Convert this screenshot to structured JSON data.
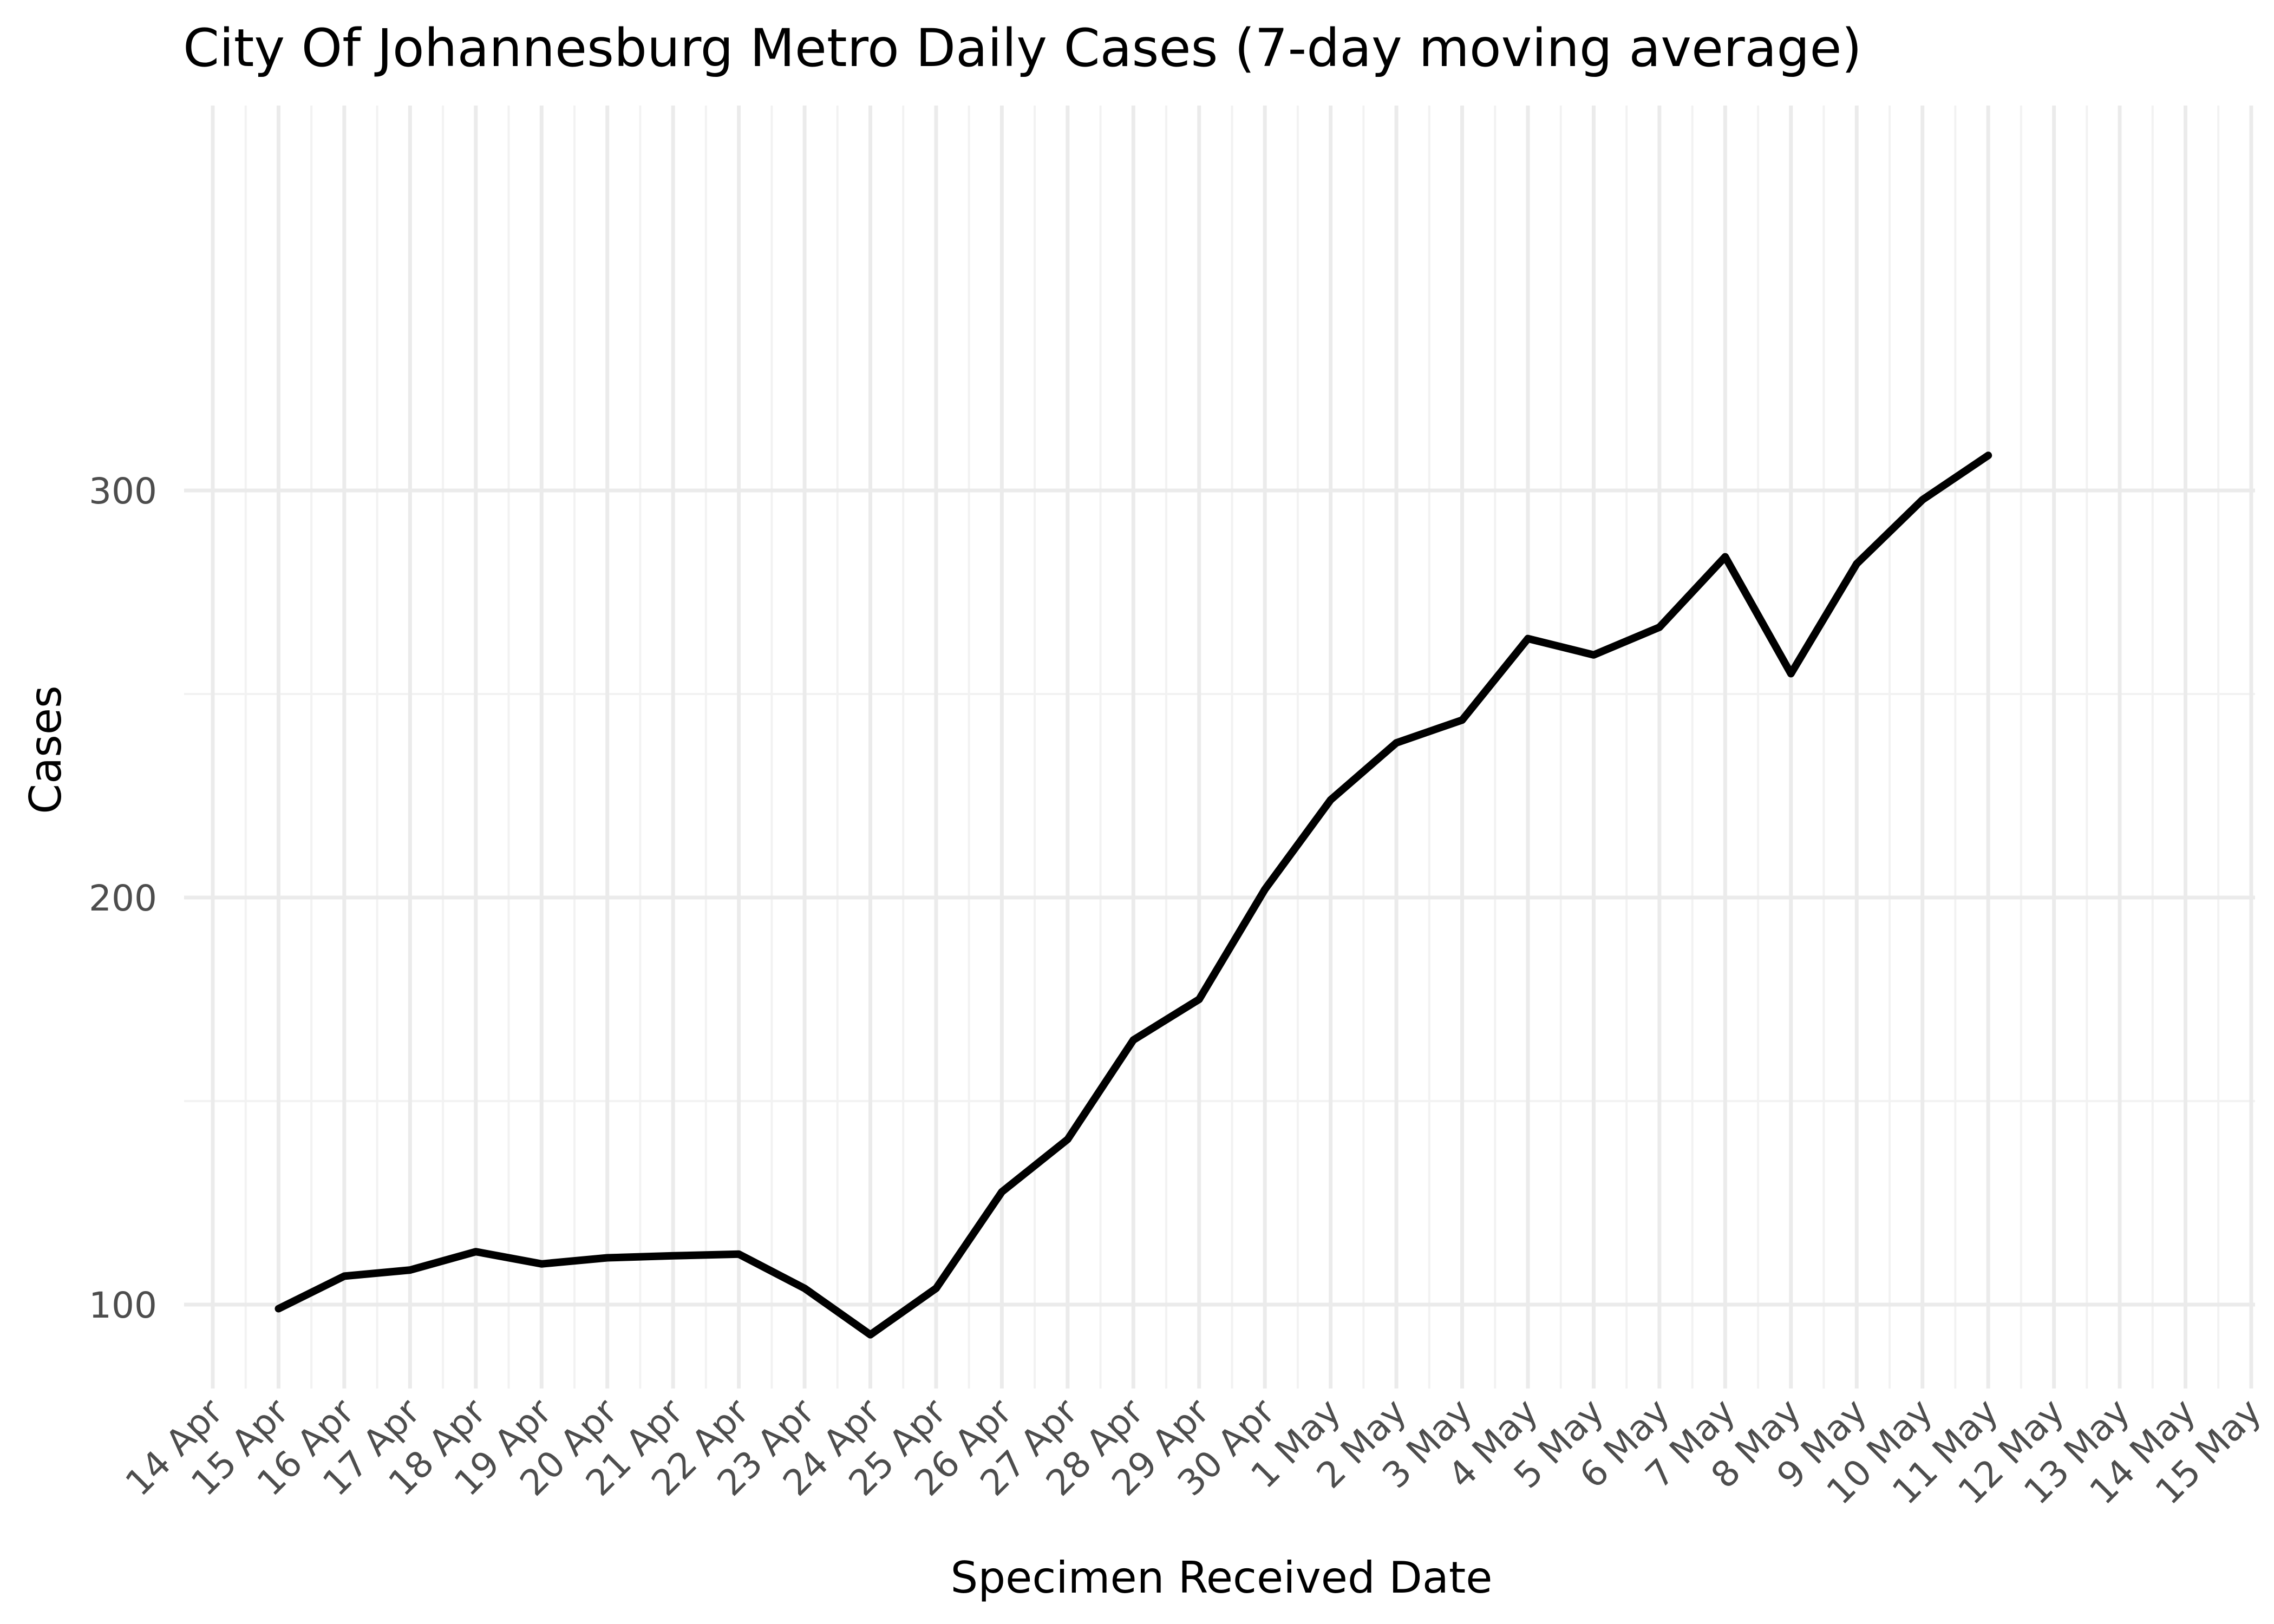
{
  "chart_data": {
    "type": "line",
    "title": "City Of Johannesburg Metro Daily Cases (7-day moving average)",
    "xlabel": "Specimen Received Date",
    "ylabel": "Cases",
    "x_tick_labels": [
      "14 Apr",
      "15 Apr",
      "16 Apr",
      "17 Apr",
      "18 Apr",
      "19 Apr",
      "20 Apr",
      "21 Apr",
      "22 Apr",
      "23 Apr",
      "24 Apr",
      "25 Apr",
      "26 Apr",
      "27 Apr",
      "28 Apr",
      "29 Apr",
      "30 Apr",
      "1 May",
      "2 May",
      "3 May",
      "4 May",
      "5 May",
      "6 May",
      "7 May",
      "8 May",
      "9 May",
      "10 May",
      "11 May",
      "12 May",
      "13 May",
      "14 May",
      "15 May"
    ],
    "y_ticks": [
      100,
      200,
      300
    ],
    "ylim": [
      87,
      322
    ],
    "grid": true,
    "legend": "none",
    "series": [
      {
        "x": [
          "15 Apr",
          "16 Apr",
          "17 Apr",
          "18 Apr",
          "19 Apr",
          "20 Apr",
          "21 Apr",
          "22 Apr",
          "23 Apr",
          "24 Apr",
          "25 Apr",
          "26 Apr",
          "27 Apr",
          "28 Apr",
          "29 Apr",
          "30 Apr",
          "1 May",
          "2 May",
          "3 May",
          "4 May",
          "5 May",
          "6 May",
          "7 May",
          "8 May",
          "9 May",
          "10 May",
          "11 May"
        ],
        "values": [
          99,
          107,
          108.5,
          113,
          110,
          111.5,
          112,
          112.4,
          104,
          92.6,
          104,
          127.7,
          140.6,
          165,
          175,
          202,
          224,
          238,
          243.6,
          263.6,
          259.6,
          266.4,
          283.7,
          255,
          282,
          297.7,
          308.6
        ]
      }
    ],
    "color": "#000000"
  }
}
